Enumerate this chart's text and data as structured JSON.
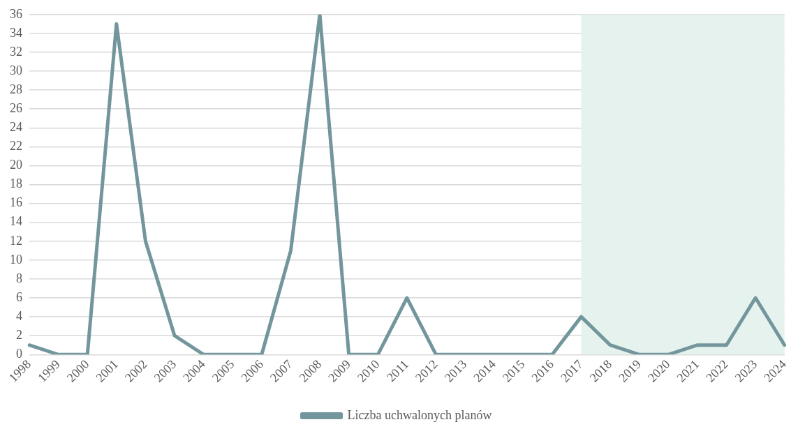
{
  "chart_data": {
    "type": "line",
    "categories": [
      "1998",
      "1999",
      "2000",
      "2001",
      "2002",
      "2003",
      "2004",
      "2005",
      "2006",
      "2007",
      "2008",
      "2009",
      "2010",
      "2011",
      "2012",
      "2013",
      "2014",
      "2015",
      "2016",
      "2017",
      "2018",
      "2019",
      "2020",
      "2021",
      "2022",
      "2023",
      "2024"
    ],
    "series": [
      {
        "name": "Liczba uchwalonych planów",
        "color": "#73969c",
        "values": [
          1,
          0,
          0,
          35,
          12,
          2,
          0,
          0,
          0,
          11,
          36,
          0,
          0,
          6,
          0,
          0,
          0,
          0,
          0,
          4,
          1,
          0,
          0,
          1,
          1,
          6,
          1
        ]
      }
    ],
    "ylim": [
      0,
      36
    ],
    "yticks": [
      0,
      2,
      4,
      6,
      8,
      10,
      12,
      14,
      16,
      18,
      20,
      22,
      24,
      26,
      28,
      30,
      32,
      34,
      36
    ],
    "bands": [
      {
        "axis": "x",
        "from": "2017",
        "to": "2024",
        "color": "#e6f2ee"
      }
    ],
    "grid": "y",
    "legend": "bottom",
    "marker": "none",
    "line_style": "solid"
  }
}
